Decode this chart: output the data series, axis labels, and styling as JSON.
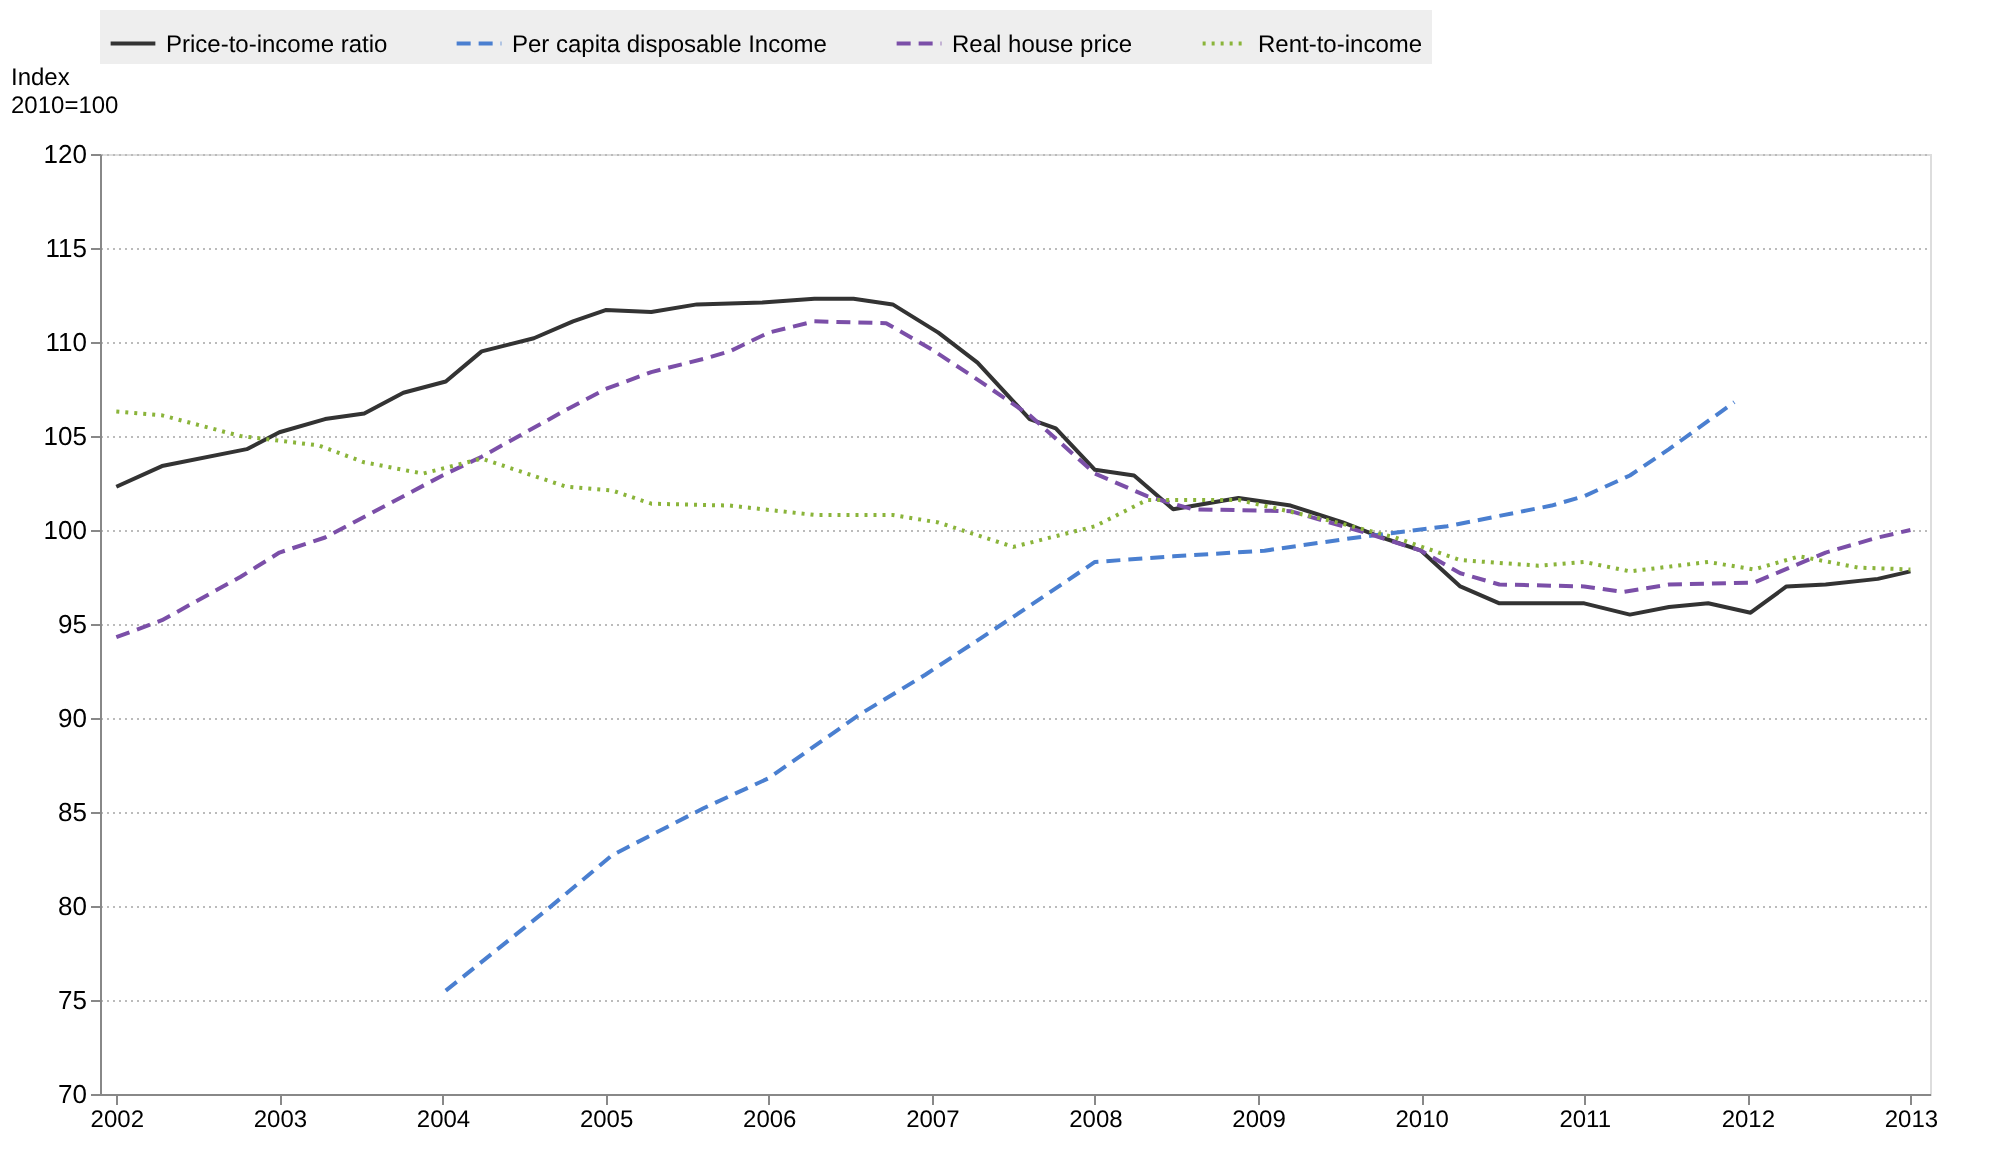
{
  "chart_data": {
    "type": "line",
    "ylabel": "Index\n2010=100",
    "xlim": [
      2001.9,
      2013.12
    ],
    "xticks": [
      2002,
      2003,
      2004,
      2005,
      2006,
      2007,
      2008,
      2009,
      2010,
      2011,
      2012,
      2013
    ],
    "ylim": [
      70,
      120
    ],
    "yticks": [
      70,
      75,
      80,
      85,
      90,
      95,
      100,
      105,
      110,
      115,
      120
    ],
    "grid": "y",
    "legend": "top",
    "marker": "none",
    "series": [
      {
        "name": "Price-to-income ratio",
        "color": "#333333",
        "line_style": "solid",
        "x": [
          2002.0,
          2002.28,
          2002.8,
          2003.0,
          2003.28,
          2003.52,
          2003.76,
          2004.02,
          2004.24,
          2004.56,
          2004.8,
          2005.0,
          2005.28,
          2005.56,
          2005.96,
          2006.28,
          2006.52,
          2006.76,
          2007.04,
          2007.28,
          2007.6,
          2007.76,
          2008.0,
          2008.24,
          2008.48,
          2008.88,
          2009.2,
          2009.52,
          2009.76,
          2010.0,
          2010.24,
          2010.48,
          2011.0,
          2011.28,
          2011.52,
          2011.76,
          2012.02,
          2012.24,
          2012.48,
          2012.8,
          2013.0
        ],
        "values": [
          102.3,
          103.4,
          104.3,
          105.2,
          105.9,
          106.2,
          107.3,
          107.9,
          109.5,
          110.2,
          111.1,
          111.7,
          111.6,
          112.0,
          112.1,
          112.3,
          112.3,
          112.0,
          110.5,
          108.9,
          105.9,
          105.4,
          103.2,
          102.9,
          101.1,
          101.7,
          101.3,
          100.4,
          99.6,
          98.9,
          97.0,
          96.1,
          96.1,
          95.5,
          95.9,
          96.1,
          95.6,
          97.0,
          97.1,
          97.4,
          97.8
        ]
      },
      {
        "name": "Per capita disposable Income",
        "color": "#4a7fd0",
        "line_style": "dashed",
        "x": [
          2004.02,
          2004.64,
          2005.04,
          2005.6,
          2006.0,
          2006.56,
          2006.96,
          2007.52,
          2008.0,
          2008.48,
          2009.04,
          2009.52,
          2010.16,
          2010.8,
          2011.0,
          2011.28,
          2011.52,
          2011.92
        ],
        "values": [
          75.5,
          79.8,
          82.7,
          85.2,
          86.8,
          90.2,
          92.3,
          95.5,
          98.3,
          98.6,
          98.9,
          99.5,
          100.2,
          101.3,
          101.8,
          102.9,
          104.3,
          106.8
        ]
      },
      {
        "name": "Real house price",
        "color": "#7b4fa8",
        "line_style": "dashed",
        "x": [
          2002.0,
          2002.28,
          2002.76,
          2003.0,
          2003.28,
          2003.76,
          2004.0,
          2004.24,
          2004.76,
          2005.0,
          2005.28,
          2005.6,
          2005.76,
          2006.0,
          2006.28,
          2006.72,
          2007.0,
          2007.28,
          2007.6,
          2008.0,
          2008.32,
          2008.6,
          2009.2,
          2009.68,
          2010.0,
          2010.24,
          2010.48,
          2011.0,
          2011.24,
          2011.52,
          2012.04,
          2012.48,
          2012.8,
          2013.0
        ],
        "values": [
          94.3,
          95.2,
          97.5,
          98.8,
          99.6,
          101.8,
          102.9,
          103.9,
          106.4,
          107.5,
          108.4,
          109.1,
          109.5,
          110.5,
          111.1,
          111.0,
          109.6,
          108.0,
          106.1,
          103.0,
          101.8,
          101.1,
          101.0,
          99.8,
          98.9,
          97.7,
          97.1,
          97.0,
          96.7,
          97.1,
          97.2,
          98.8,
          99.6,
          100.0
        ]
      },
      {
        "name": "Rent-to-income",
        "color": "#8ab43a",
        "line_style": "dotted",
        "x": [
          2002.0,
          2002.28,
          2002.76,
          2003.24,
          2003.52,
          2003.88,
          2004.24,
          2004.76,
          2005.04,
          2005.28,
          2005.76,
          2006.28,
          2006.76,
          2007.04,
          2007.5,
          2008.0,
          2008.32,
          2008.88,
          2009.44,
          2009.84,
          2010.24,
          2010.72,
          2011.0,
          2011.28,
          2011.76,
          2012.04,
          2012.32,
          2012.68,
          2013.0
        ],
        "values": [
          106.3,
          106.1,
          105.0,
          104.5,
          103.6,
          103.0,
          103.8,
          102.3,
          102.1,
          101.4,
          101.3,
          100.8,
          100.8,
          100.4,
          99.1,
          100.2,
          101.6,
          101.6,
          100.5,
          99.6,
          98.4,
          98.1,
          98.3,
          97.8,
          98.3,
          97.9,
          98.6,
          98.0,
          97.9
        ]
      }
    ]
  }
}
